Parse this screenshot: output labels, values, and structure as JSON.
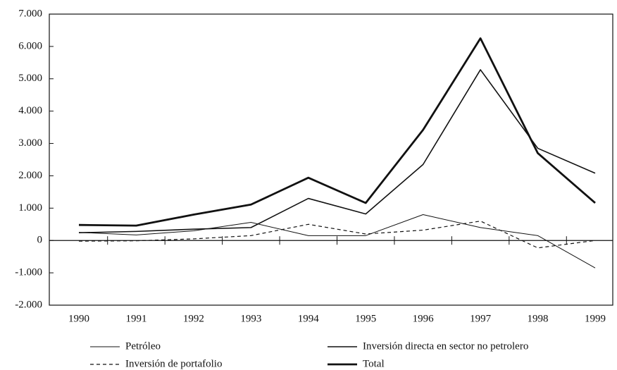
{
  "chart_data": {
    "type": "line",
    "categories": [
      "1990",
      "1991",
      "1992",
      "1993",
      "1994",
      "1995",
      "1996",
      "1997",
      "1998",
      "1999"
    ],
    "ylim": [
      -2000,
      7000
    ],
    "yticks": [
      {
        "value": -2000,
        "label": "-2.000"
      },
      {
        "value": -1000,
        "label": "-1.000"
      },
      0,
      {
        "value": 1000,
        "label": "1.000"
      },
      {
        "value": 2000,
        "label": "2.000"
      },
      {
        "value": 3000,
        "label": "3.000"
      },
      {
        "value": 4000,
        "label": "4.000"
      },
      {
        "value": 5000,
        "label": "5.000"
      },
      {
        "value": 6000,
        "label": "6.000"
      },
      {
        "value": 7000,
        "label": "7.000"
      }
    ],
    "series": [
      {
        "name": "Petróleo",
        "color": "#111111",
        "width": 1,
        "dash": false,
        "values": [
          250,
          170,
          300,
          560,
          150,
          150,
          800,
          400,
          150,
          -850
        ]
      },
      {
        "name": "Inversión de portafolio",
        "color": "#111111",
        "width": 1.2,
        "dash": true,
        "values": [
          -20,
          -10,
          50,
          150,
          500,
          200,
          320,
          600,
          -230,
          0
        ]
      },
      {
        "name": "Inversión directa en sector no petrolero",
        "color": "#111111",
        "width": 1.6,
        "dash": false,
        "values": [
          240,
          280,
          350,
          400,
          1300,
          820,
          2350,
          5280,
          2850,
          2080
        ]
      },
      {
        "name": "Total",
        "color": "#111111",
        "width": 2.8,
        "dash": false,
        "values": [
          480,
          460,
          800,
          1110,
          1940,
          1160,
          3420,
          6250,
          2700,
          1160
        ]
      }
    ]
  }
}
